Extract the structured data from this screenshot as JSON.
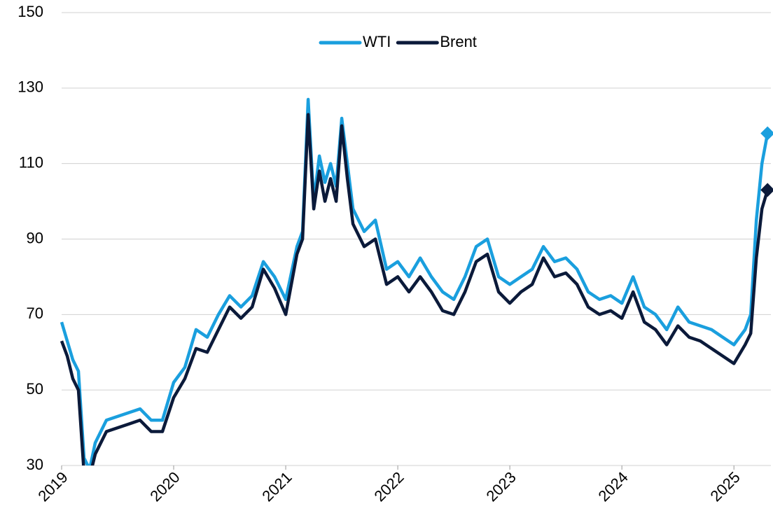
{
  "chart_data": {
    "type": "line",
    "x": [
      2019.0,
      2019.05,
      2019.1,
      2019.15,
      2019.2,
      2019.25,
      2019.3,
      2019.4,
      2019.5,
      2019.6,
      2019.7,
      2019.8,
      2019.9,
      2020.0,
      2020.1,
      2020.2,
      2020.3,
      2020.4,
      2020.5,
      2020.6,
      2020.7,
      2020.8,
      2020.9,
      2021.0,
      2021.1,
      2021.15,
      2021.2,
      2021.25,
      2021.3,
      2021.35,
      2021.4,
      2021.45,
      2021.5,
      2021.55,
      2021.6,
      2021.7,
      2021.8,
      2021.9,
      2022.0,
      2022.1,
      2022.2,
      2022.3,
      2022.4,
      2022.5,
      2022.6,
      2022.7,
      2022.8,
      2022.9,
      2023.0,
      2023.1,
      2023.2,
      2023.3,
      2023.4,
      2023.5,
      2023.6,
      2023.7,
      2023.8,
      2023.9,
      2024.0,
      2024.1,
      2024.2,
      2024.3,
      2024.4,
      2024.5,
      2024.6,
      2024.7,
      2024.8,
      2024.9,
      2025.0,
      2025.1,
      2025.15,
      2025.2,
      2025.25,
      2025.3
    ],
    "series": [
      {
        "name": "WTI",
        "color": "#1a9fde",
        "values": [
          68,
          63,
          58,
          55,
          32,
          29,
          36,
          42,
          43,
          44,
          45,
          42,
          42,
          52,
          56,
          66,
          64,
          70,
          75,
          72,
          75,
          84,
          80,
          74,
          88,
          92,
          127,
          100,
          112,
          105,
          110,
          104,
          122,
          110,
          98,
          92,
          95,
          82,
          84,
          80,
          85,
          80,
          76,
          74,
          80,
          88,
          90,
          80,
          78,
          80,
          82,
          88,
          84,
          85,
          82,
          76,
          74,
          75,
          73,
          80,
          72,
          70,
          66,
          72,
          68,
          67,
          66,
          64,
          62,
          66,
          70,
          95,
          110,
          118
        ]
      },
      {
        "name": "Brent",
        "color": "#0b1a3a",
        "values": [
          63,
          59,
          53,
          50,
          28,
          27,
          33,
          39,
          40,
          41,
          42,
          39,
          39,
          48,
          53,
          61,
          60,
          66,
          72,
          69,
          72,
          82,
          77,
          70,
          86,
          90,
          123,
          98,
          108,
          100,
          106,
          100,
          120,
          106,
          94,
          88,
          90,
          78,
          80,
          76,
          80,
          76,
          71,
          70,
          76,
          84,
          86,
          76,
          73,
          76,
          78,
          85,
          80,
          81,
          78,
          72,
          70,
          71,
          69,
          76,
          68,
          66,
          62,
          67,
          64,
          63,
          61,
          59,
          57,
          62,
          65,
          85,
          98,
          103
        ]
      }
    ],
    "xlim": [
      2019,
      2025.33
    ],
    "xticks": [
      2019,
      2020,
      2021,
      2022,
      2023,
      2024,
      2025
    ],
    "ylim": [
      30,
      150
    ],
    "yticks": [
      30,
      50,
      70,
      90,
      110,
      130,
      150
    ],
    "grid": true,
    "legend": "top"
  }
}
